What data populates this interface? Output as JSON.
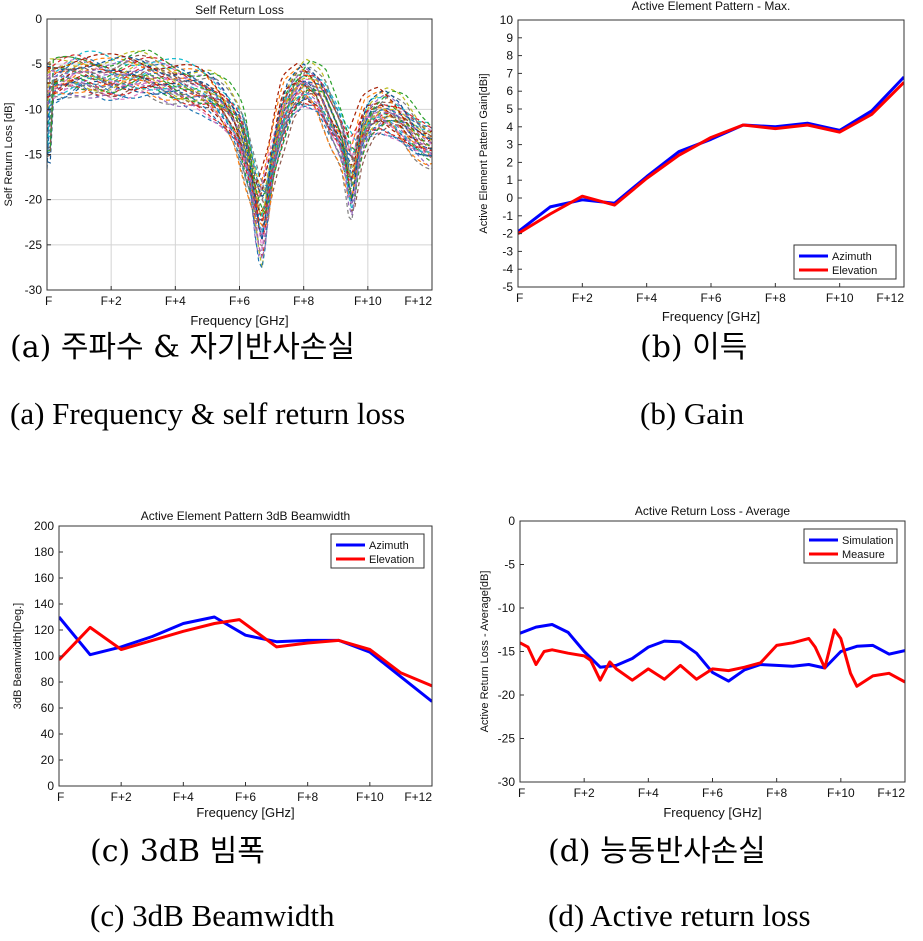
{
  "chart_data": [
    {
      "id": "a",
      "type": "line",
      "title": "Self Return Loss",
      "xlabel": "Frequency [GHz]",
      "ylabel": "Self Return Loss [dB]",
      "xlim": [
        0,
        12
      ],
      "ylim": [
        -30,
        0
      ],
      "xticks": [
        0,
        2,
        4,
        6,
        8,
        10,
        12
      ],
      "xtick_labels": [
        "F",
        "F+2",
        "F+4",
        "F+6",
        "F+8",
        "F+10",
        "F+12"
      ],
      "yticks": [
        0,
        -5,
        -10,
        -15,
        -20,
        -25,
        -30
      ],
      "ytick_labels": [
        "0",
        "-5",
        "-10",
        "-15",
        "-20",
        "-25",
        "-30"
      ],
      "grid": true,
      "note": "many overlapping dashed measurement traces",
      "envelope": {
        "x": [
          0,
          1,
          2,
          3,
          4,
          5,
          5.5,
          6,
          6.4,
          6.7,
          7,
          7.5,
          8,
          8.5,
          9,
          9.5,
          10,
          10.5,
          11,
          11.5,
          12
        ],
        "y": [
          -7,
          -6,
          -6.5,
          -6,
          -7,
          -8,
          -9.5,
          -12,
          -17,
          -20,
          -15,
          -9,
          -7,
          -8,
          -12,
          -15,
          -11,
          -10,
          -11,
          -13,
          -14
        ]
      },
      "trace_count": 40
    },
    {
      "id": "b",
      "type": "line",
      "title": "Active Element Pattern - Max.",
      "xlabel": "Frequency [GHz]",
      "ylabel": "Active Element Pattern Gain[dBi]",
      "xlim": [
        0,
        12
      ],
      "ylim": [
        -5,
        10
      ],
      "xticks": [
        0,
        2,
        4,
        6,
        8,
        10,
        12
      ],
      "xtick_labels": [
        "F",
        "F+2",
        "F+4",
        "F+6",
        "F+8",
        "F+10",
        "F+12"
      ],
      "yticks": [
        10,
        9,
        8,
        7,
        6,
        5,
        4,
        3,
        2,
        1,
        0,
        -1,
        -2,
        -3,
        -4,
        -5
      ],
      "ytick_labels": [
        "10",
        "9",
        "8",
        "7",
        "6",
        "5",
        "4",
        "3",
        "2",
        "1",
        "0",
        "-1",
        "-2",
        "-3",
        "-4",
        "-5"
      ],
      "legend_position": "bottom-right",
      "x": [
        0,
        1,
        2,
        3,
        4,
        5,
        6,
        7,
        8,
        9,
        10,
        11,
        12
      ],
      "series": [
        {
          "name": "Azimuth",
          "color": "#0000ff",
          "values": [
            -1.9,
            -0.5,
            -0.1,
            -0.3,
            1.2,
            2.6,
            3.3,
            4.1,
            4.0,
            4.2,
            3.8,
            4.9,
            6.8
          ]
        },
        {
          "name": "Elevation",
          "color": "#ff0000",
          "values": [
            -2.0,
            -0.9,
            0.1,
            -0.4,
            1.1,
            2.4,
            3.4,
            4.1,
            3.9,
            4.1,
            3.7,
            4.7,
            6.5
          ]
        }
      ]
    },
    {
      "id": "c",
      "type": "line",
      "title": "Active Element Pattern 3dB Beamwidth",
      "xlabel": "Frequency [GHz]",
      "ylabel": "3dB Beamwidth[Deg.]",
      "xlim": [
        0,
        12
      ],
      "ylim": [
        0,
        200
      ],
      "xticks": [
        0,
        2,
        4,
        6,
        8,
        10,
        12
      ],
      "xtick_labels": [
        "F",
        "F+2",
        "F+4",
        "F+6",
        "F+8",
        "F+10",
        "F+12"
      ],
      "yticks": [
        200,
        180,
        160,
        140,
        120,
        100,
        80,
        60,
        40,
        20,
        0
      ],
      "ytick_labels": [
        "200",
        "180",
        "160",
        "140",
        "120",
        "100",
        "80",
        "60",
        "40",
        "20",
        "0"
      ],
      "legend_position": "top-right",
      "series": [
        {
          "name": "Azimuth",
          "color": "#0000ff",
          "x": [
            0,
            1,
            2,
            3,
            4,
            5,
            6,
            7,
            8,
            9,
            10,
            11,
            12
          ],
          "values": [
            130,
            101,
            107,
            115,
            125,
            130,
            116,
            111,
            112,
            112,
            103,
            84,
            65
          ]
        },
        {
          "name": "Elevation",
          "color": "#ff0000",
          "x": [
            0,
            1,
            2,
            3,
            4,
            5,
            5.8,
            7,
            8,
            9,
            10,
            11,
            12
          ],
          "values": [
            97,
            122,
            105,
            112,
            119,
            125,
            128,
            107,
            110,
            112,
            105,
            87,
            77
          ]
        }
      ]
    },
    {
      "id": "d",
      "type": "line",
      "title": "Active Return Loss - Average",
      "xlabel": "Frequency [GHz]",
      "ylabel": "Active Return Loss - Average[dB]",
      "xlim": [
        0,
        12
      ],
      "ylim": [
        -30,
        0
      ],
      "xticks": [
        0,
        2,
        4,
        6,
        8,
        10,
        12
      ],
      "xtick_labels": [
        "F",
        "F+2",
        "F+4",
        "F+6",
        "F+8",
        "F+10",
        "F+12"
      ],
      "yticks": [
        0,
        -5,
        -10,
        -15,
        -20,
        -25,
        -30
      ],
      "ytick_labels": [
        "0",
        "-5",
        "-10",
        "-15",
        "-20",
        "-25",
        "-30"
      ],
      "legend_position": "top-right",
      "series": [
        {
          "name": "Simulation",
          "color": "#0000ff",
          "x": [
            0,
            0.5,
            1,
            1.5,
            2,
            2.5,
            3,
            3.5,
            4,
            4.5,
            5,
            5.5,
            6,
            6.5,
            7,
            7.5,
            8,
            8.5,
            9,
            9.5,
            10,
            10.5,
            11,
            11.5,
            12
          ],
          "values": [
            -12.9,
            -12.2,
            -11.9,
            -12.8,
            -15.0,
            -16.8,
            -16.6,
            -15.8,
            -14.5,
            -13.8,
            -13.9,
            -15.2,
            -17.4,
            -18.4,
            -17.1,
            -16.5,
            -16.6,
            -16.7,
            -16.5,
            -16.9,
            -15.0,
            -14.4,
            -14.3,
            -15.3,
            -14.9
          ]
        },
        {
          "name": "Measure",
          "color": "#ff0000",
          "x": [
            0,
            0.25,
            0.5,
            0.75,
            1,
            1.5,
            2,
            2.2,
            2.5,
            2.8,
            3,
            3.5,
            4,
            4.5,
            5,
            5.5,
            6,
            6.5,
            7,
            7.5,
            8,
            8.5,
            9,
            9.2,
            9.5,
            9.8,
            10,
            10.3,
            10.5,
            11,
            11.5,
            12
          ],
          "values": [
            -14.0,
            -14.5,
            -16.5,
            -15.0,
            -14.8,
            -15.2,
            -15.5,
            -16.0,
            -18.3,
            -16.2,
            -17.0,
            -18.3,
            -17.0,
            -18.2,
            -16.6,
            -18.2,
            -17.0,
            -17.2,
            -16.8,
            -16.3,
            -14.3,
            -14.0,
            -13.5,
            -14.5,
            -16.9,
            -12.5,
            -13.5,
            -17.5,
            -19.0,
            -17.8,
            -17.5,
            -18.5
          ]
        }
      ]
    }
  ],
  "captions": {
    "a_ko": "(a) 주파수 & 자기반사손실",
    "a_en": "(a) Frequency & self return loss",
    "b_ko": "(b) 이득",
    "b_en": "(b) Gain",
    "c_ko": "(c) 3dB 빔폭",
    "c_en": "(c) 3dB Beamwidth",
    "d_ko": "(d) 능동반사손실",
    "d_en": "(d) Active return loss"
  }
}
